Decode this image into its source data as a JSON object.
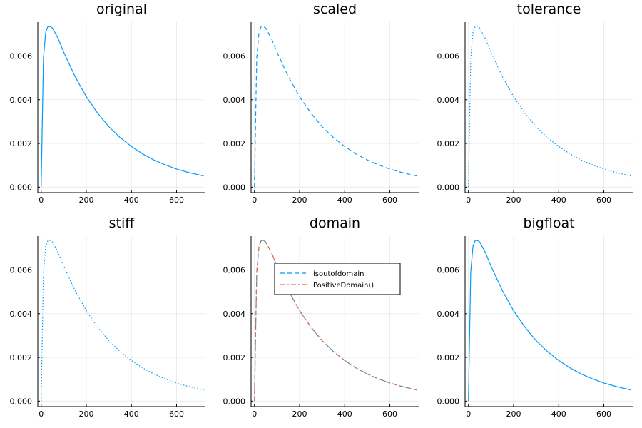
{
  "chart_data": [
    {
      "type": "line",
      "title": "original",
      "xlabel": "",
      "ylabel": "",
      "xlim": [
        -15,
        728
      ],
      "ylim": [
        -0.00025,
        0.00755
      ],
      "xticks": [
        0,
        200,
        400,
        600
      ],
      "yticks": [
        0.0,
        0.002,
        0.004,
        0.006
      ],
      "xtick_labels": [
        "0",
        "200",
        "400",
        "600"
      ],
      "ytick_labels": [
        "0.000",
        "0.002",
        "0.004",
        "0.006"
      ],
      "grid": true,
      "series": [
        {
          "color": "#009AFA",
          "dash": "solid",
          "x": [
            0,
            10,
            20,
            30,
            40,
            50,
            75,
            100,
            150,
            200,
            250,
            300,
            350,
            400,
            450,
            500,
            550,
            600,
            650,
            720
          ],
          "y": [
            0.0,
            0.0059,
            0.0071,
            0.00735,
            0.00735,
            0.00728,
            0.0068,
            0.00617,
            0.00506,
            0.00414,
            0.00339,
            0.00277,
            0.00227,
            0.00186,
            0.00152,
            0.00124,
            0.00102,
            0.00083,
            0.00068,
            0.00051
          ]
        }
      ]
    },
    {
      "type": "line",
      "title": "scaled",
      "xlabel": "",
      "ylabel": "",
      "xlim": [
        -15,
        728
      ],
      "ylim": [
        -0.00025,
        0.00755
      ],
      "xticks": [
        0,
        200,
        400,
        600
      ],
      "yticks": [
        0.0,
        0.002,
        0.004,
        0.006
      ],
      "xtick_labels": [
        "0",
        "200",
        "400",
        "600"
      ],
      "ytick_labels": [
        "0.000",
        "0.002",
        "0.004",
        "0.006"
      ],
      "grid": true,
      "series": [
        {
          "color": "#009AFA",
          "dash": "dashed",
          "x": [
            0,
            10,
            20,
            30,
            40,
            50,
            75,
            100,
            150,
            200,
            250,
            300,
            350,
            400,
            450,
            500,
            550,
            600,
            650,
            720
          ],
          "y": [
            0.0,
            0.0059,
            0.0071,
            0.00735,
            0.00735,
            0.00728,
            0.0068,
            0.00617,
            0.00506,
            0.00414,
            0.00339,
            0.00277,
            0.00227,
            0.00186,
            0.00152,
            0.00124,
            0.00102,
            0.00083,
            0.00068,
            0.00051
          ]
        }
      ]
    },
    {
      "type": "line",
      "title": "tolerance",
      "xlabel": "",
      "ylabel": "",
      "xlim": [
        -15,
        728
      ],
      "ylim": [
        -0.00025,
        0.00755
      ],
      "xticks": [
        0,
        200,
        400,
        600
      ],
      "yticks": [
        0.0,
        0.002,
        0.004,
        0.006
      ],
      "xtick_labels": [
        "0",
        "200",
        "400",
        "600"
      ],
      "ytick_labels": [
        "0.000",
        "0.002",
        "0.004",
        "0.006"
      ],
      "grid": true,
      "series": [
        {
          "color": "#009AFA",
          "dash": "dotted",
          "x": [
            0,
            10,
            20,
            30,
            40,
            50,
            75,
            100,
            150,
            200,
            250,
            300,
            350,
            400,
            450,
            500,
            550,
            600,
            650,
            720
          ],
          "y": [
            0.0,
            0.0059,
            0.0071,
            0.00735,
            0.00735,
            0.00728,
            0.0068,
            0.00617,
            0.00506,
            0.00414,
            0.00339,
            0.00277,
            0.00227,
            0.00186,
            0.00152,
            0.00124,
            0.00102,
            0.00083,
            0.00068,
            0.00051
          ]
        }
      ]
    },
    {
      "type": "line",
      "title": "stiff",
      "xlabel": "",
      "ylabel": "",
      "xlim": [
        -15,
        728
      ],
      "ylim": [
        -0.00025,
        0.00755
      ],
      "xticks": [
        0,
        200,
        400,
        600
      ],
      "yticks": [
        0.0,
        0.002,
        0.004,
        0.006
      ],
      "xtick_labels": [
        "0",
        "200",
        "400",
        "600"
      ],
      "ytick_labels": [
        "0.000",
        "0.002",
        "0.004",
        "0.006"
      ],
      "grid": true,
      "series": [
        {
          "color": "#009AFA",
          "dash": "dotted",
          "x": [
            0,
            10,
            20,
            30,
            40,
            50,
            75,
            100,
            150,
            200,
            250,
            300,
            350,
            400,
            450,
            500,
            550,
            600,
            650,
            720
          ],
          "y": [
            0.0,
            0.0059,
            0.0071,
            0.00735,
            0.00735,
            0.00728,
            0.0068,
            0.00617,
            0.00506,
            0.00414,
            0.00339,
            0.00277,
            0.00227,
            0.00186,
            0.00152,
            0.00124,
            0.00102,
            0.00083,
            0.00068,
            0.00051
          ]
        }
      ]
    },
    {
      "type": "line",
      "title": "domain",
      "xlabel": "",
      "ylabel": "",
      "xlim": [
        -15,
        728
      ],
      "ylim": [
        -0.00025,
        0.00755
      ],
      "xticks": [
        0,
        200,
        400,
        600
      ],
      "yticks": [
        0.0,
        0.002,
        0.004,
        0.006
      ],
      "xtick_labels": [
        "0",
        "200",
        "400",
        "600"
      ],
      "ytick_labels": [
        "0.000",
        "0.002",
        "0.004",
        "0.006"
      ],
      "grid": true,
      "legend": "top-right",
      "series": [
        {
          "name": "isoutofdomain",
          "color": "#009AFA",
          "dash": "dashed",
          "x": [
            0,
            10,
            20,
            30,
            40,
            50,
            75,
            100,
            150,
            200,
            250,
            300,
            350,
            400,
            450,
            500,
            550,
            600,
            650,
            720
          ],
          "y": [
            0.0,
            0.0059,
            0.0071,
            0.00735,
            0.00735,
            0.00728,
            0.0068,
            0.00617,
            0.00506,
            0.00414,
            0.00339,
            0.00277,
            0.00227,
            0.00186,
            0.00152,
            0.00124,
            0.00102,
            0.00083,
            0.00068,
            0.00051
          ]
        },
        {
          "name": "PositiveDomain()",
          "color": "#E36F47",
          "dash": "dashdot",
          "x": [
            0,
            10,
            20,
            30,
            40,
            50,
            75,
            100,
            150,
            200,
            250,
            300,
            350,
            400,
            450,
            500,
            550,
            600,
            650,
            720
          ],
          "y": [
            0.0,
            0.0059,
            0.0071,
            0.00735,
            0.00735,
            0.00728,
            0.0068,
            0.00617,
            0.00506,
            0.00414,
            0.00339,
            0.00277,
            0.00227,
            0.00186,
            0.00152,
            0.00124,
            0.00102,
            0.00083,
            0.00068,
            0.00051
          ]
        }
      ]
    },
    {
      "type": "line",
      "title": "bigfloat",
      "xlabel": "",
      "ylabel": "",
      "xlim": [
        -15,
        728
      ],
      "ylim": [
        -0.00025,
        0.00755
      ],
      "xticks": [
        0,
        200,
        400,
        600
      ],
      "yticks": [
        0.0,
        0.002,
        0.004,
        0.006
      ],
      "xtick_labels": [
        "0",
        "200",
        "400",
        "600"
      ],
      "ytick_labels": [
        "0.000",
        "0.002",
        "0.004",
        "0.006"
      ],
      "grid": true,
      "series": [
        {
          "color": "#009AFA",
          "dash": "solid",
          "x": [
            0,
            10,
            20,
            30,
            40,
            50,
            75,
            100,
            150,
            200,
            250,
            300,
            350,
            400,
            450,
            500,
            550,
            600,
            650,
            720
          ],
          "y": [
            0.0,
            0.0059,
            0.0071,
            0.00735,
            0.00735,
            0.00728,
            0.0068,
            0.00617,
            0.00506,
            0.00414,
            0.00339,
            0.00277,
            0.00227,
            0.00186,
            0.00152,
            0.00124,
            0.00102,
            0.00083,
            0.00068,
            0.00051
          ]
        }
      ]
    }
  ]
}
